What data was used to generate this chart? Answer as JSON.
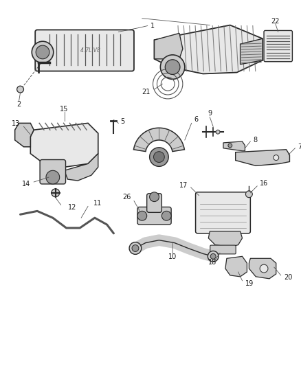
{
  "bg_color": "#ffffff",
  "line_color": "#2a2a2a",
  "fill_light": "#e8e8e8",
  "fill_mid": "#cccccc",
  "fill_dark": "#999999",
  "label_color": "#1a1a1a",
  "figsize": [
    4.38,
    5.33
  ],
  "dpi": 100,
  "label_fontsize": 7.0
}
